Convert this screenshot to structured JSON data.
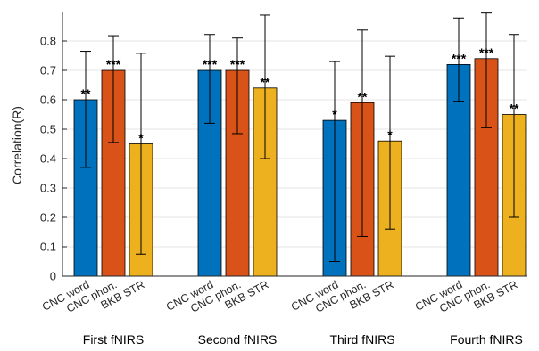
{
  "chart_data": {
    "type": "bar",
    "ylabel": "Correlation(R)",
    "ylim": [
      0,
      0.9
    ],
    "yticks": [
      "0",
      "0.1",
      "0.2",
      "0.3",
      "0.4",
      "0.5",
      "0.6",
      "0.7",
      "0.8"
    ],
    "grid": "horizontal",
    "series_names": [
      "CNC word",
      "CNC phon.",
      "BKB STR"
    ],
    "colors": [
      "#0072BD",
      "#D95319",
      "#EDB120"
    ],
    "groups": [
      {
        "label": "First fNIRS",
        "bars": [
          {
            "category": "CNC word",
            "value": 0.6,
            "err_low": 0.37,
            "err_high": 0.765,
            "sig": "**"
          },
          {
            "category": "CNC phon.",
            "value": 0.7,
            "err_low": 0.455,
            "err_high": 0.818,
            "sig": "***"
          },
          {
            "category": "BKB STR",
            "value": 0.45,
            "err_low": 0.075,
            "err_high": 0.758,
            "sig": "*"
          }
        ]
      },
      {
        "label": "Second fNIRS",
        "bars": [
          {
            "category": "CNC word",
            "value": 0.7,
            "err_low": 0.52,
            "err_high": 0.822,
            "sig": "***"
          },
          {
            "category": "CNC phon.",
            "value": 0.7,
            "err_low": 0.485,
            "err_high": 0.81,
            "sig": "***"
          },
          {
            "category": "BKB STR",
            "value": 0.64,
            "err_low": 0.4,
            "err_high": 0.888,
            "sig": "**"
          }
        ]
      },
      {
        "label": "Third fNIRS",
        "bars": [
          {
            "category": "CNC word",
            "value": 0.53,
            "err_low": 0.05,
            "err_high": 0.73,
            "sig": "*"
          },
          {
            "category": "CNC phon.",
            "value": 0.59,
            "err_low": 0.135,
            "err_high": 0.837,
            "sig": "**"
          },
          {
            "category": "BKB STR",
            "value": 0.46,
            "err_low": 0.16,
            "err_high": 0.748,
            "sig": "*"
          }
        ]
      },
      {
        "label": "Fourth fNIRS",
        "bars": [
          {
            "category": "CNC word",
            "value": 0.72,
            "err_low": 0.595,
            "err_high": 0.878,
            "sig": "***"
          },
          {
            "category": "CNC phon.",
            "value": 0.74,
            "err_low": 0.505,
            "err_high": 0.895,
            "sig": "***"
          },
          {
            "category": "BKB STR",
            "value": 0.55,
            "err_low": 0.2,
            "err_high": 0.822,
            "sig": "**"
          }
        ]
      }
    ]
  }
}
